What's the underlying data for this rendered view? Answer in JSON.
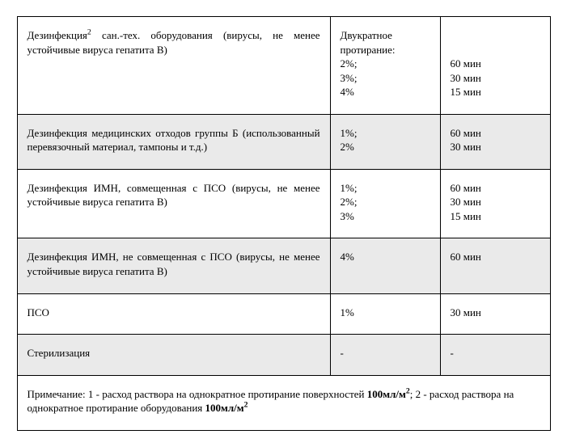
{
  "rows": [
    {
      "gray": false,
      "desc_html": "Дезинфекция<sup>2</sup> сан.-тех. оборудования (вирусы, не менее устойчивые вируса гепатита В)",
      "col2_html": "Двукратное протирание:<br>2%;<br>3%;<br>4%",
      "col3_html": "<br><br>60 мин<br>30 мин<br>15 мин"
    },
    {
      "gray": true,
      "desc_html": "Дезинфекция медицинских отходов группы Б (использованный перевязочный материал, тампоны и т.д.)",
      "col2_html": "1%;<br>2%",
      "col3_html": "60 мин<br>30 мин"
    },
    {
      "gray": false,
      "desc_html": "Дезинфекция ИМН, совмещенная с ПСО (вирусы, не менее устойчивые вируса гепатита В)",
      "col2_html": "1%;<br>2%;<br>3%",
      "col3_html": "60 мин<br>30 мин<br>15 мин"
    },
    {
      "gray": true,
      "desc_html": "Дезинфекция ИМН, не совмещенная с ПСО (вирусы, не менее устойчивые вируса гепатита В)",
      "col2_html": "4%",
      "col3_html": "60 мин"
    },
    {
      "gray": false,
      "desc_html": "ПСО",
      "col2_html": "1%",
      "col3_html": "30 мин"
    },
    {
      "gray": true,
      "desc_html": "Стерилизация",
      "col2_html": "-",
      "col3_html": "-"
    }
  ],
  "note_html": "Примечание: 1 - расход раствора на однократное протирание поверхностей <b>100мл/м<sup>2</sup></b>; 2 - расход раствора на однократное протирание оборудования <b>100мл/м<sup>2</sup></b>"
}
